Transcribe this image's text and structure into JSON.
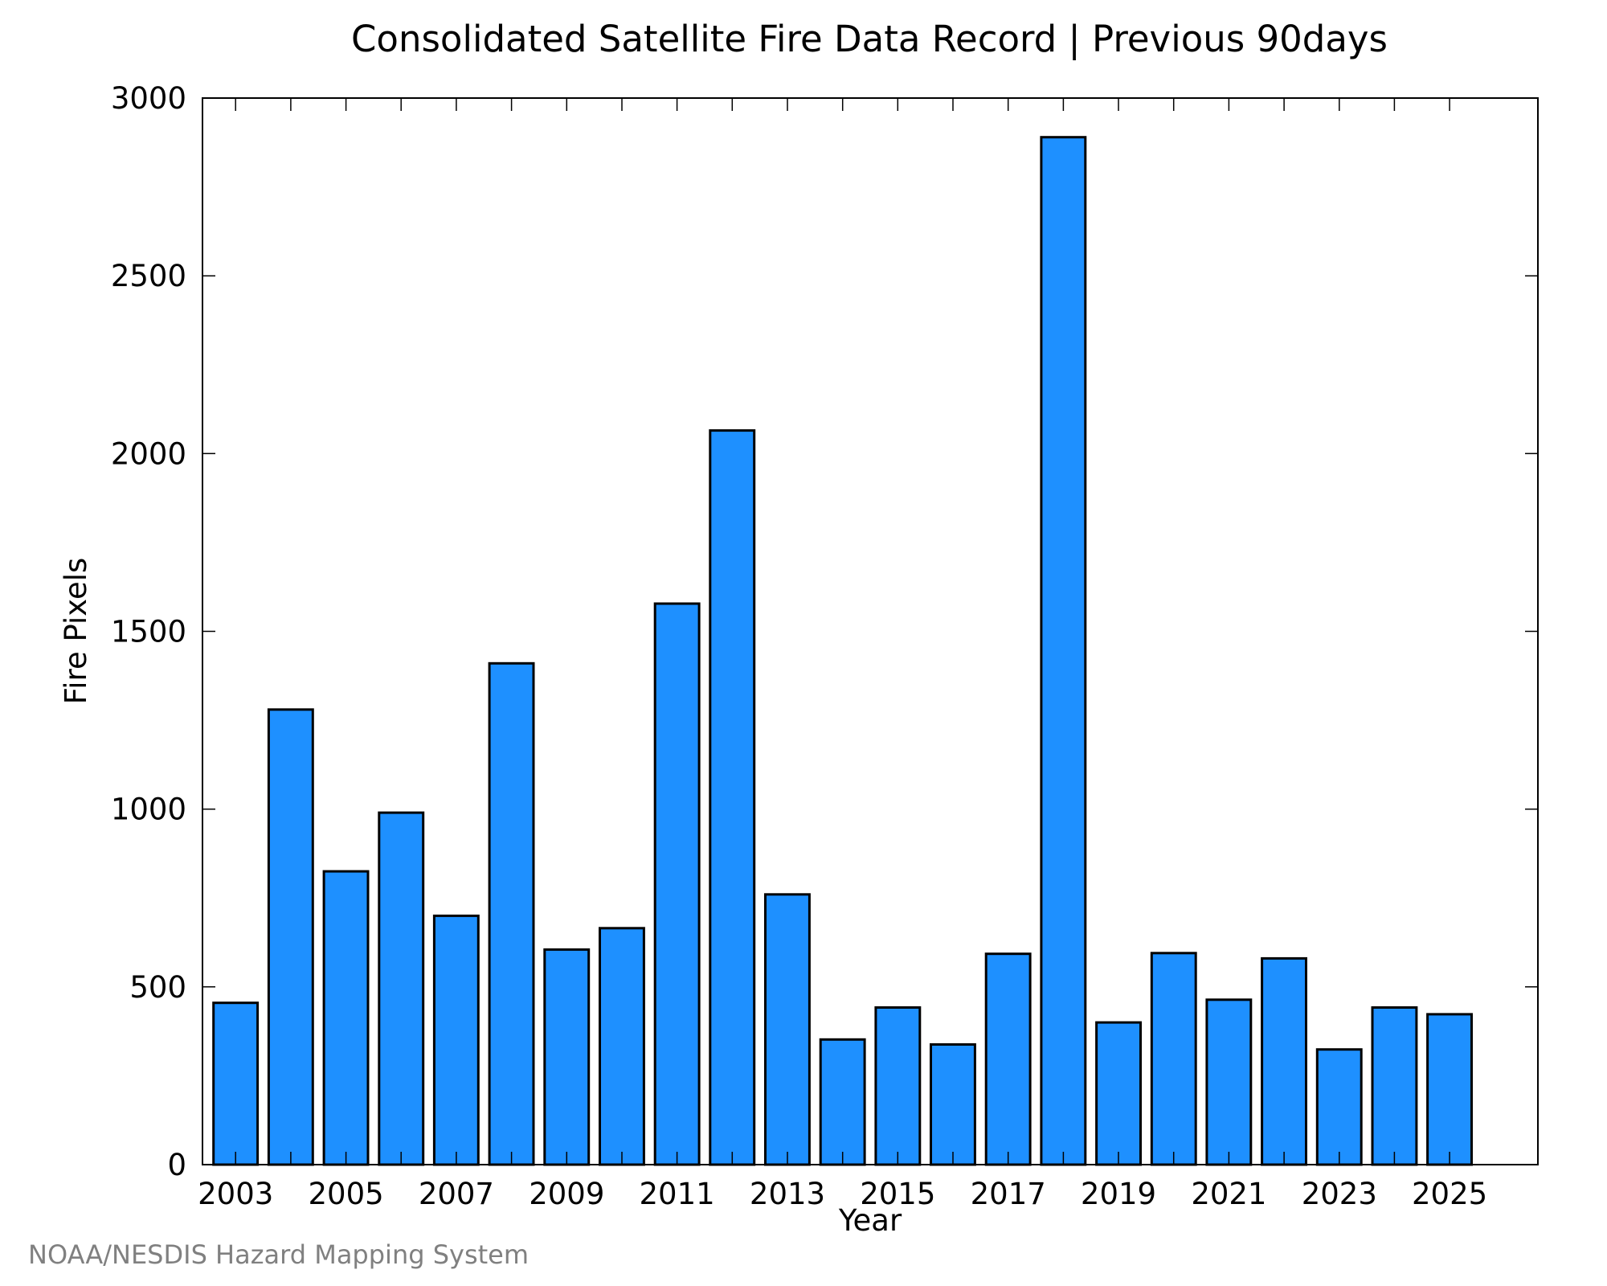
{
  "chart_data": {
    "type": "bar",
    "title": "Consolidated Satellite Fire Data Record | Previous 90days",
    "xlabel": "Year",
    "ylabel": "Fire Pixels",
    "ylim": [
      0,
      3000
    ],
    "yticks": [
      0,
      500,
      1000,
      1500,
      2000,
      2500,
      3000
    ],
    "xlim": [
      2002.4,
      2026.6
    ],
    "xticks": [
      2003,
      2004,
      2005,
      2006,
      2007,
      2008,
      2009,
      2010,
      2011,
      2012,
      2013,
      2014,
      2015,
      2016,
      2017,
      2018,
      2019,
      2020,
      2021,
      2022,
      2023,
      2024,
      2025
    ],
    "xticklabels": [
      "2003",
      "",
      "2005",
      "",
      "2007",
      "",
      "2009",
      "",
      "2011",
      "",
      "2013",
      "",
      "2015",
      "",
      "2017",
      "",
      "2019",
      "",
      "2021",
      "",
      "2023",
      "",
      "2025"
    ],
    "categories": [
      "2003",
      "2004",
      "2005",
      "2006",
      "2007",
      "2008",
      "2009",
      "2010",
      "2011",
      "2012",
      "2013",
      "2014",
      "2015",
      "2016",
      "2017",
      "2018",
      "2019",
      "2020",
      "2021",
      "2022",
      "2023",
      "2024",
      "2025"
    ],
    "values": [
      455,
      1280,
      825,
      990,
      700,
      1410,
      605,
      665,
      1578,
      2065,
      760,
      352,
      442,
      338,
      593,
      2890,
      400,
      595,
      464,
      580,
      324,
      442,
      423
    ],
    "bar_color": "#1e90ff",
    "edge_color": "#000000",
    "grid": false,
    "legend": "none"
  },
  "footer": {
    "credit": "NOAA/NESDIS Hazard Mapping System"
  }
}
